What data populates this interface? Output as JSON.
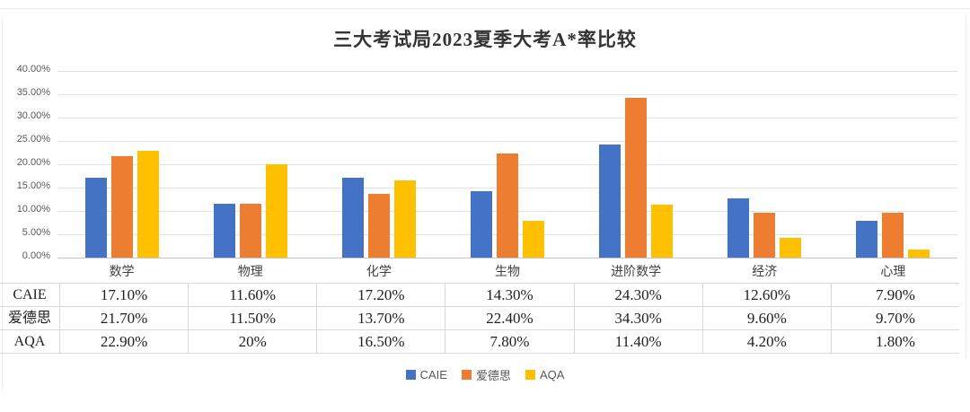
{
  "title": "三大考试局2023夏季大考A*率比较",
  "chart_data": {
    "type": "bar",
    "title": "三大考试局2023夏季大考A*率比较",
    "categories": [
      "数学",
      "物理",
      "化学",
      "生物",
      "进阶数学",
      "经济",
      "心理"
    ],
    "series": [
      {
        "name": "CAIE",
        "color": "#4472C4",
        "values": [
          17.1,
          11.6,
          17.2,
          14.3,
          24.3,
          12.6,
          7.9
        ]
      },
      {
        "name": "爱德思",
        "color": "#ED7D31",
        "values": [
          21.7,
          11.5,
          13.7,
          22.4,
          34.3,
          9.6,
          9.7
        ]
      },
      {
        "name": "AQA",
        "color": "#FFC000",
        "values": [
          22.9,
          20.0,
          16.5,
          7.8,
          11.4,
          4.2,
          1.8
        ]
      }
    ],
    "xlabel": "",
    "ylabel": "",
    "ylim": [
      0,
      40
    ],
    "y_ticks": [
      "40.00%",
      "35.00%",
      "30.00%",
      "25.00%",
      "20.00%",
      "15.00%",
      "10.00%",
      "5.00%",
      "0.00%"
    ],
    "grid": true,
    "legend_position": "bottom"
  },
  "table": {
    "rows": [
      {
        "label": "CAIE",
        "values": [
          "17.10%",
          "11.60%",
          "17.20%",
          "14.30%",
          "24.30%",
          "12.60%",
          "7.90%"
        ]
      },
      {
        "label": "爱德思",
        "values": [
          "21.70%",
          "11.50%",
          "13.70%",
          "22.40%",
          "34.30%",
          "9.60%",
          "9.70%"
        ]
      },
      {
        "label": "AQA",
        "values": [
          "22.90%",
          "20%",
          "16.50%",
          "7.80%",
          "11.40%",
          "4.20%",
          "1.80%"
        ]
      }
    ]
  },
  "legend": {
    "items": [
      {
        "label": "CAIE",
        "color": "#4472C4"
      },
      {
        "label": "爱德思",
        "color": "#ED7D31"
      },
      {
        "label": "AQA",
        "color": "#FFC000"
      }
    ]
  }
}
